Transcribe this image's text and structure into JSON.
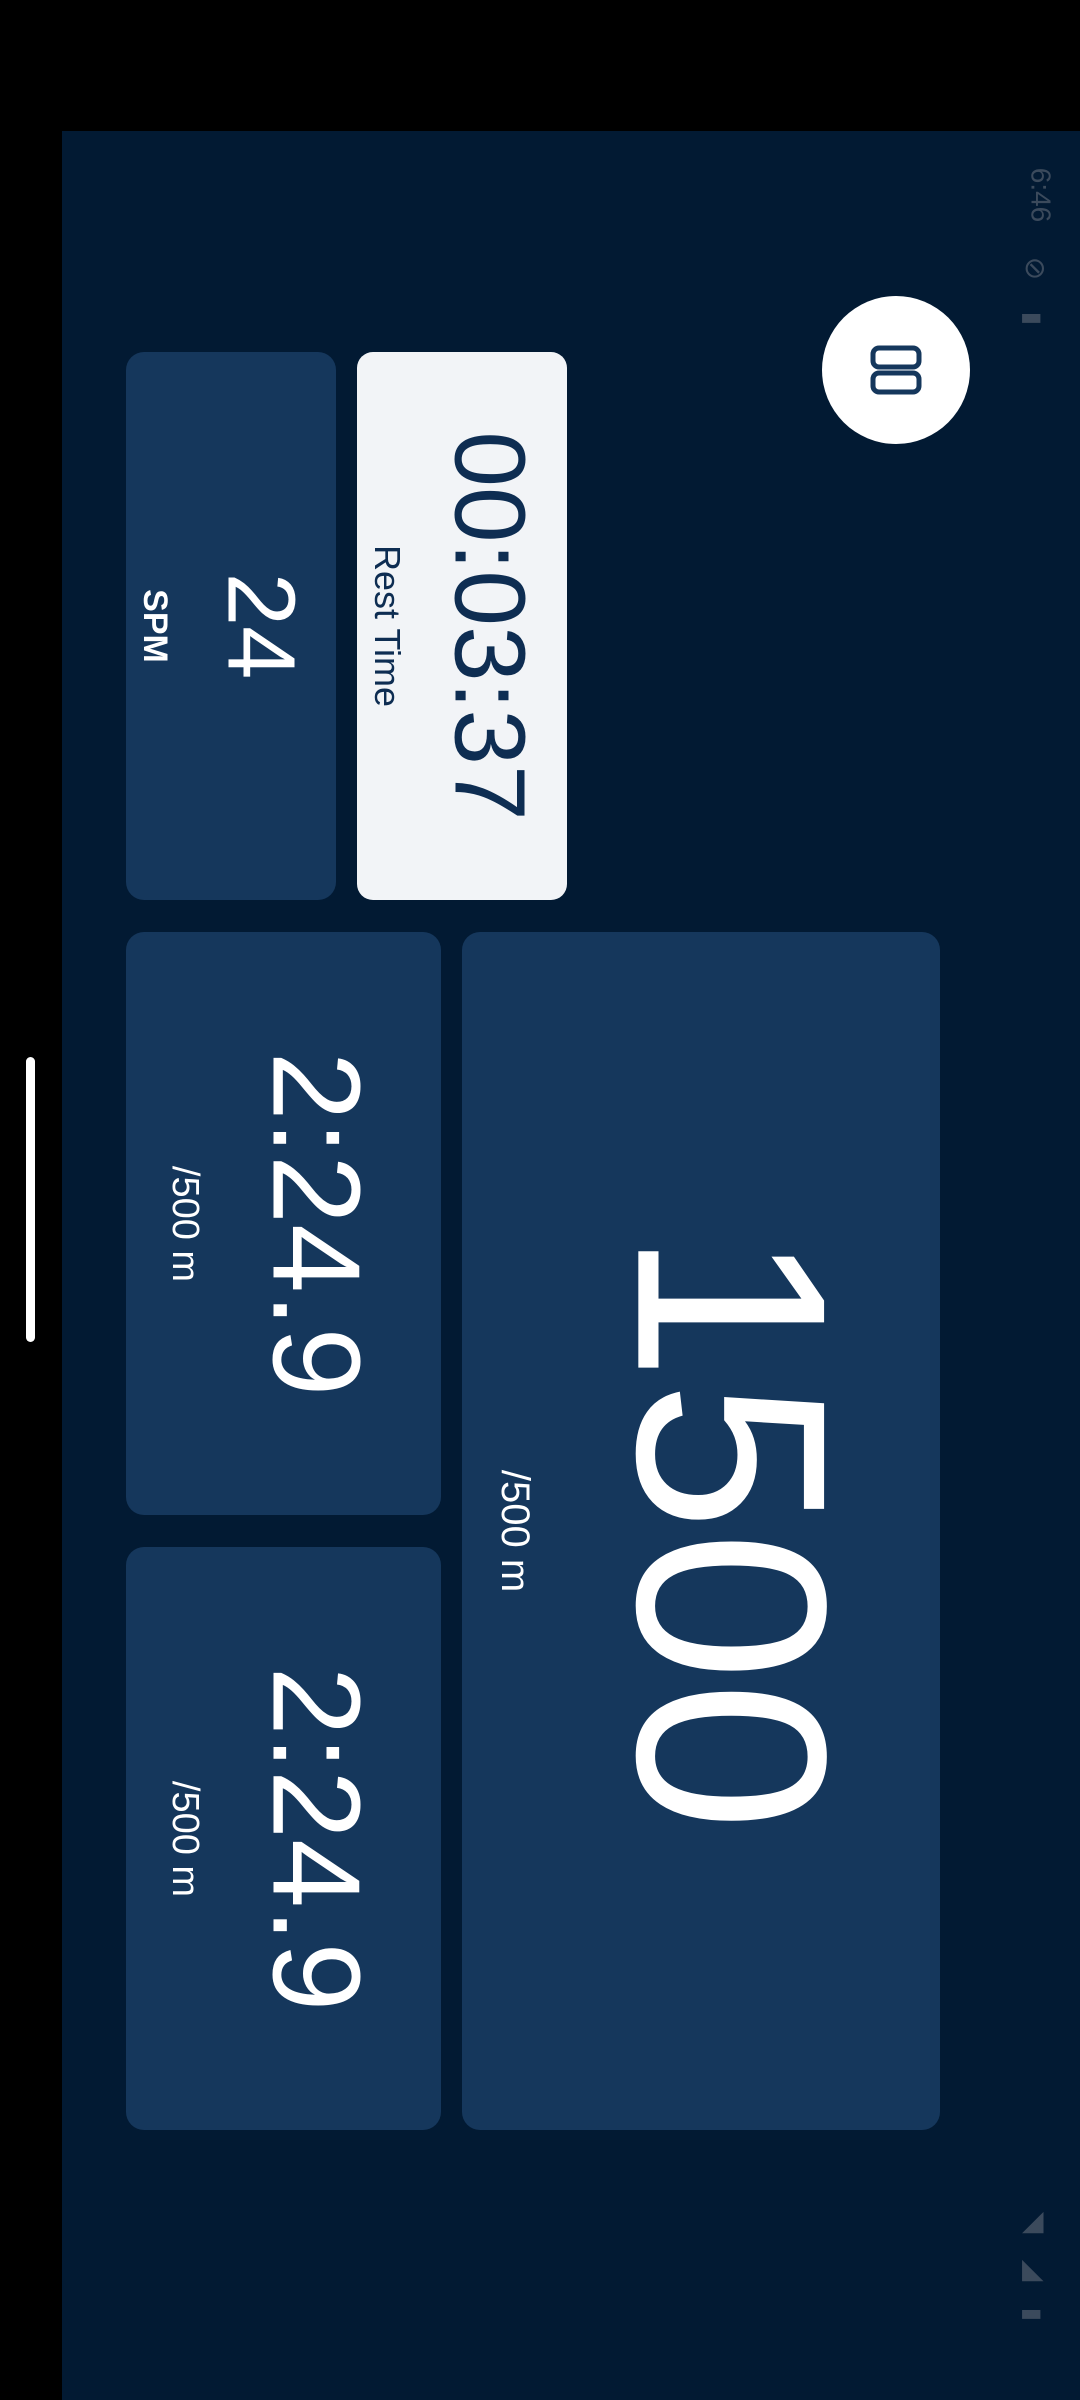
{
  "status_bar": {
    "time": "6:46"
  },
  "menu": {
    "icon": "pause-icon"
  },
  "rest": {
    "value": "00:03:37",
    "label": "Rest Time"
  },
  "spm": {
    "value": "24",
    "label": "SPM"
  },
  "distance": {
    "value": "1500",
    "unit": "/500 m"
  },
  "pace_tiles": [
    {
      "value": "2:24.9",
      "unit": "/500 m"
    },
    {
      "value": "2:24.9",
      "unit": "/500 m"
    }
  ],
  "colors": {
    "background": "#021a33",
    "tile": "#15375c",
    "rest_card": "#f2f4f7",
    "text_light": "#ffffff",
    "text_dark": "#0e2d52"
  }
}
